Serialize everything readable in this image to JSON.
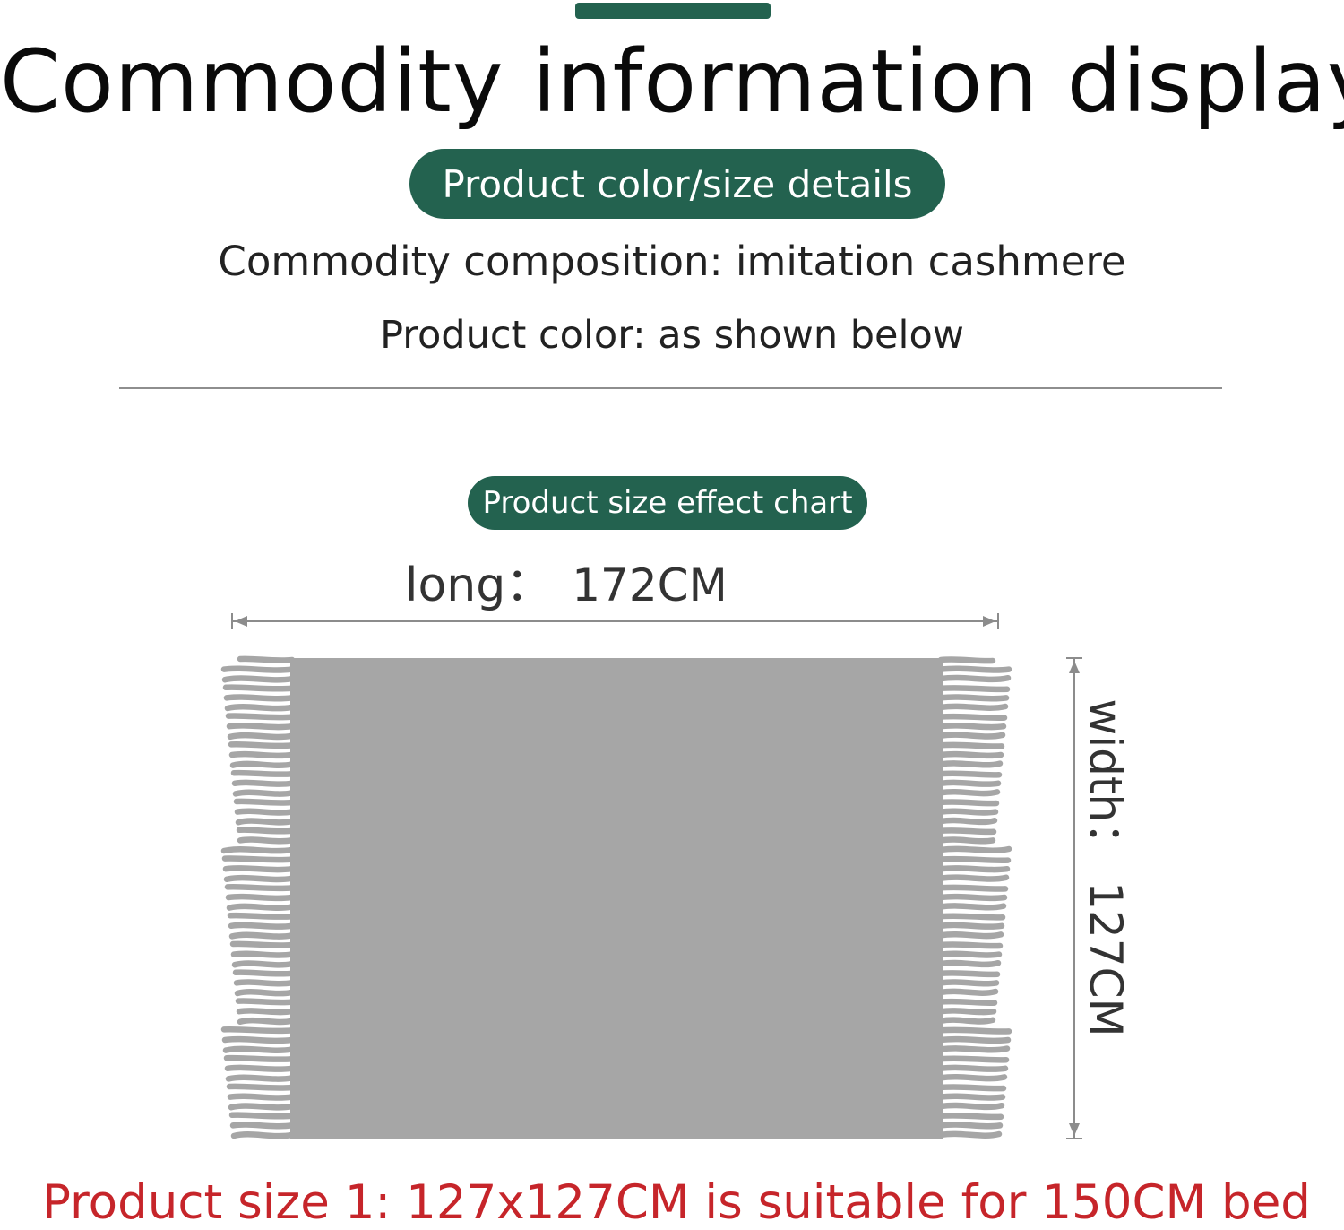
{
  "header": {
    "title": "Commodity information display"
  },
  "details": {
    "section_label": "Product color/size details",
    "composition": "Commodity composition: imitation cashmere",
    "color": "Product color: as shown below"
  },
  "size_chart": {
    "section_label": "Product size effect chart",
    "long_label": "long：",
    "long_value": "172CM",
    "width_label": "width：",
    "width_value": "127CM"
  },
  "footer": {
    "size_note": "Product size 1: 127x127CM is suitable for 150CM bed"
  },
  "colors": {
    "accent": "#23624f",
    "blanket": "#a6a6a6",
    "note": "#c6252a"
  }
}
